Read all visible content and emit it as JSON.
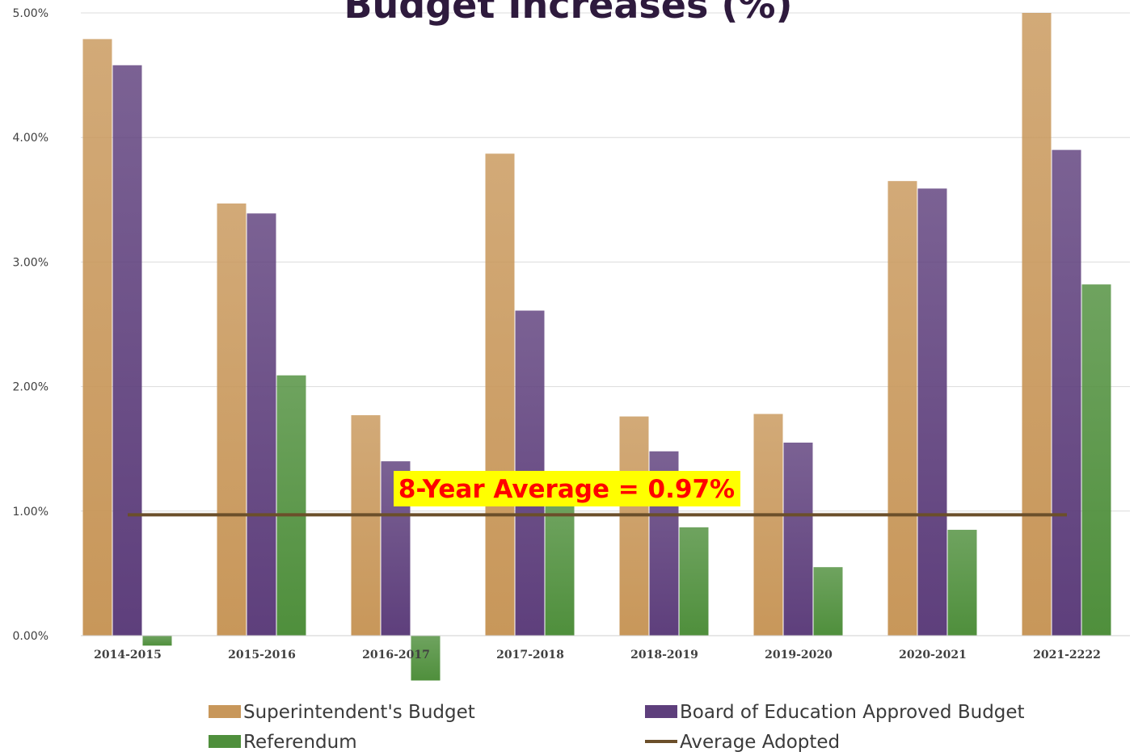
{
  "chart_data": {
    "type": "bar",
    "title": "Budget Increases (%)",
    "categories": [
      "2014-2015",
      "2015-2016",
      "2016-2017",
      "2017-2018",
      "2018-2019",
      "2019-2020",
      "2020-2021",
      "2021-2222"
    ],
    "series": [
      {
        "name": "Superintendent's Budget",
        "color": "#c8975a",
        "values": [
          4.79,
          3.47,
          1.77,
          3.87,
          1.76,
          1.78,
          3.65,
          5.0
        ]
      },
      {
        "name": "Board of Education Approved Budget",
        "color": "#5e3f7c",
        "values": [
          4.58,
          3.39,
          1.4,
          2.61,
          1.48,
          1.55,
          3.59,
          3.9
        ]
      },
      {
        "name": "Referendum",
        "color": "#4f8f3c",
        "values": [
          -0.08,
          2.09,
          -0.36,
          1.05,
          0.87,
          0.55,
          0.85,
          2.82
        ]
      }
    ],
    "average_line": {
      "name": "Average Adopted",
      "value": 0.97,
      "color": "#6b4f2a"
    },
    "annotation": {
      "text": "8-Year Average = 0.97%",
      "text_color": "#ff0000",
      "background": "#ffff00"
    },
    "ylim": [
      0,
      5
    ],
    "yticks": [
      "0.00%",
      "1.00%",
      "2.00%",
      "3.00%",
      "4.00%",
      "5.00%"
    ],
    "grid": true,
    "legend_position": "bottom"
  }
}
